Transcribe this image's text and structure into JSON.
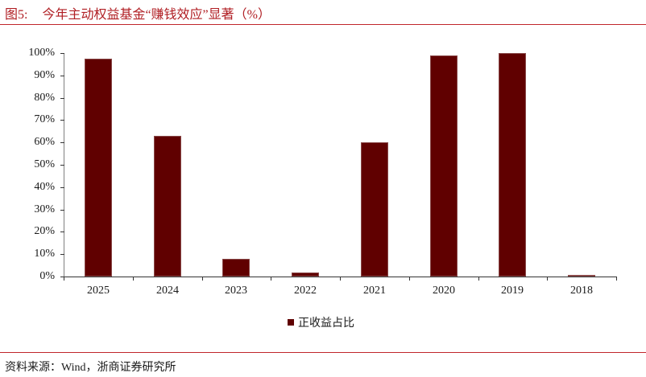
{
  "header": {
    "figure_number": "图5:",
    "title": "今年主动权益基金“赚钱效应”显著（%）"
  },
  "footer": {
    "source": "资料来源：Wind，浙商证券研究所"
  },
  "colors": {
    "bar": "#600000",
    "accent_rule": "#c0262b",
    "title": "#b01e23"
  },
  "chart_data": {
    "type": "bar",
    "title": "今年主动权益基金“赚钱效应”显著（%）",
    "xlabel": "",
    "ylabel": "",
    "categories": [
      "2025",
      "2024",
      "2023",
      "2022",
      "2021",
      "2020",
      "2019",
      "2018"
    ],
    "series": [
      {
        "name": "正收益占比",
        "values": [
          97.5,
          63.0,
          8.0,
          1.8,
          60.0,
          99.0,
          100.0,
          0.7
        ]
      }
    ],
    "ylim": [
      0,
      100
    ],
    "yticks": [
      "0%",
      "10%",
      "20%",
      "30%",
      "40%",
      "50%",
      "60%",
      "70%",
      "80%",
      "90%",
      "100%"
    ],
    "grid": false,
    "legend_position": "bottom"
  },
  "legend": {
    "label": "正收益占比"
  }
}
